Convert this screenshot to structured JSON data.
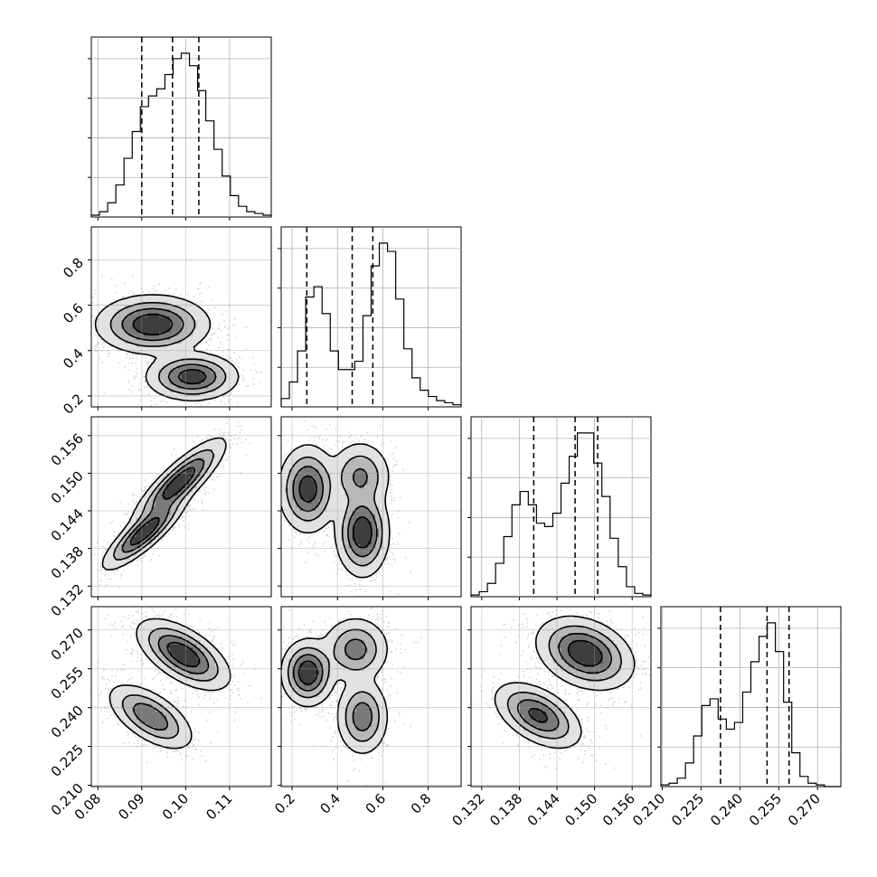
{
  "chart_data": {
    "type": "corner",
    "grid": true,
    "parameters": [
      {
        "ticks": [
          0.08,
          0.09,
          0.1,
          0.11
        ],
        "tick_labels": [
          "0.08",
          "0.09",
          "0.10",
          "0.11"
        ],
        "range": [
          0.0785,
          0.1195
        ],
        "quantiles": [
          0.09,
          0.097,
          0.103
        ]
      },
      {
        "ticks": [
          0.2,
          0.4,
          0.6,
          0.8
        ],
        "tick_labels": [
          "0.2",
          "0.4",
          "0.6",
          "0.8"
        ],
        "range": [
          0.152,
          0.945
        ],
        "quantiles": [
          0.265,
          0.465,
          0.556
        ]
      },
      {
        "ticks": [
          0.132,
          0.138,
          0.144,
          0.15,
          0.156
        ],
        "tick_labels": [
          "0.132",
          "0.138",
          "0.144",
          "0.150",
          "0.156"
        ],
        "range": [
          0.1303,
          0.159
        ],
        "quantiles": [
          0.1403,
          0.1469,
          0.1505
        ]
      },
      {
        "ticks": [
          0.21,
          0.225,
          0.24,
          0.255,
          0.27
        ],
        "tick_labels": [
          "0.210",
          "0.225",
          "0.240",
          "0.255",
          "0.270"
        ],
        "range": [
          0.2095,
          0.279
        ],
        "quantiles": [
          0.2325,
          0.2505,
          0.259
        ]
      }
    ],
    "histograms": [
      {
        "parameter": 0,
        "bin_edges_range": [
          0.0785,
          0.1195
        ],
        "counts": [
          1,
          3,
          8,
          18,
          33,
          48,
          62,
          68,
          72,
          80,
          89,
          92,
          85,
          71,
          54,
          38,
          23,
          12,
          6,
          3,
          2,
          1
        ]
      },
      {
        "parameter": 1,
        "bin_edges_range": [
          0.152,
          0.945
        ],
        "counts": [
          4,
          12,
          27,
          53,
          58,
          45,
          27,
          18,
          18,
          22,
          44,
          68,
          79,
          75,
          52,
          28,
          14,
          8,
          5,
          3,
          2,
          1
        ]
      },
      {
        "parameter": 2,
        "bin_edges_range": [
          0.1303,
          0.159
        ],
        "counts": [
          1,
          3,
          8,
          20,
          36,
          55,
          63,
          55,
          44,
          42,
          50,
          68,
          84,
          98,
          98,
          80,
          60,
          35,
          18,
          6,
          2,
          1
        ]
      },
      {
        "parameter": 3,
        "bin_edges_range": [
          0.2095,
          0.279
        ],
        "counts": [
          1,
          2,
          5,
          14,
          30,
          48,
          52,
          40,
          34,
          38,
          56,
          74,
          89,
          97,
          80,
          50,
          20,
          6,
          2,
          1,
          0,
          0
        ]
      }
    ],
    "pairs": [
      {
        "x_param": 0,
        "y_param": 1,
        "modes": [
          {
            "x": 0.0925,
            "y": 0.515,
            "sx": 0.0055,
            "sy": 0.055,
            "r": 0,
            "w": 0.62
          },
          {
            "x": 0.1015,
            "y": 0.285,
            "sx": 0.0045,
            "sy": 0.045,
            "r": 0,
            "w": 0.38
          }
        ]
      },
      {
        "x_param": 0,
        "y_param": 2,
        "modes": [
          {
            "x": 0.0905,
            "y": 0.1405,
            "sx": 0.004,
            "sy": 0.0025,
            "r": 0.85,
            "w": 0.42
          },
          {
            "x": 0.0985,
            "y": 0.1485,
            "sx": 0.0045,
            "sy": 0.003,
            "r": 0.85,
            "w": 0.58
          }
        ]
      },
      {
        "x_param": 0,
        "y_param": 3,
        "modes": [
          {
            "x": 0.092,
            "y": 0.2365,
            "sx": 0.0042,
            "sy": 0.0055,
            "r": -0.6,
            "w": 0.38
          },
          {
            "x": 0.0995,
            "y": 0.2605,
            "sx": 0.0045,
            "sy": 0.0058,
            "r": -0.6,
            "w": 0.62
          }
        ]
      },
      {
        "x_param": 1,
        "y_param": 2,
        "modes": [
          {
            "x": 0.27,
            "y": 0.1475,
            "sx": 0.055,
            "sy": 0.003,
            "r": 0,
            "w": 0.4
          },
          {
            "x": 0.51,
            "y": 0.1405,
            "sx": 0.05,
            "sy": 0.003,
            "r": 0,
            "w": 0.4
          },
          {
            "x": 0.5,
            "y": 0.1495,
            "sx": 0.06,
            "sy": 0.0025,
            "r": 0,
            "w": 0.2
          }
        ]
      },
      {
        "x_param": 1,
        "y_param": 3,
        "modes": [
          {
            "x": 0.27,
            "y": 0.2535,
            "sx": 0.05,
            "sy": 0.0055,
            "r": 0,
            "w": 0.4
          },
          {
            "x": 0.51,
            "y": 0.2365,
            "sx": 0.05,
            "sy": 0.0065,
            "r": 0,
            "w": 0.3
          },
          {
            "x": 0.48,
            "y": 0.2625,
            "sx": 0.065,
            "sy": 0.0055,
            "r": 0,
            "w": 0.3
          }
        ]
      },
      {
        "x_param": 2,
        "y_param": 3,
        "modes": [
          {
            "x": 0.141,
            "y": 0.237,
            "sx": 0.003,
            "sy": 0.0055,
            "r": -0.5,
            "w": 0.38
          },
          {
            "x": 0.1485,
            "y": 0.261,
            "sx": 0.0033,
            "sy": 0.006,
            "r": -0.3,
            "w": 0.62
          }
        ]
      }
    ]
  }
}
